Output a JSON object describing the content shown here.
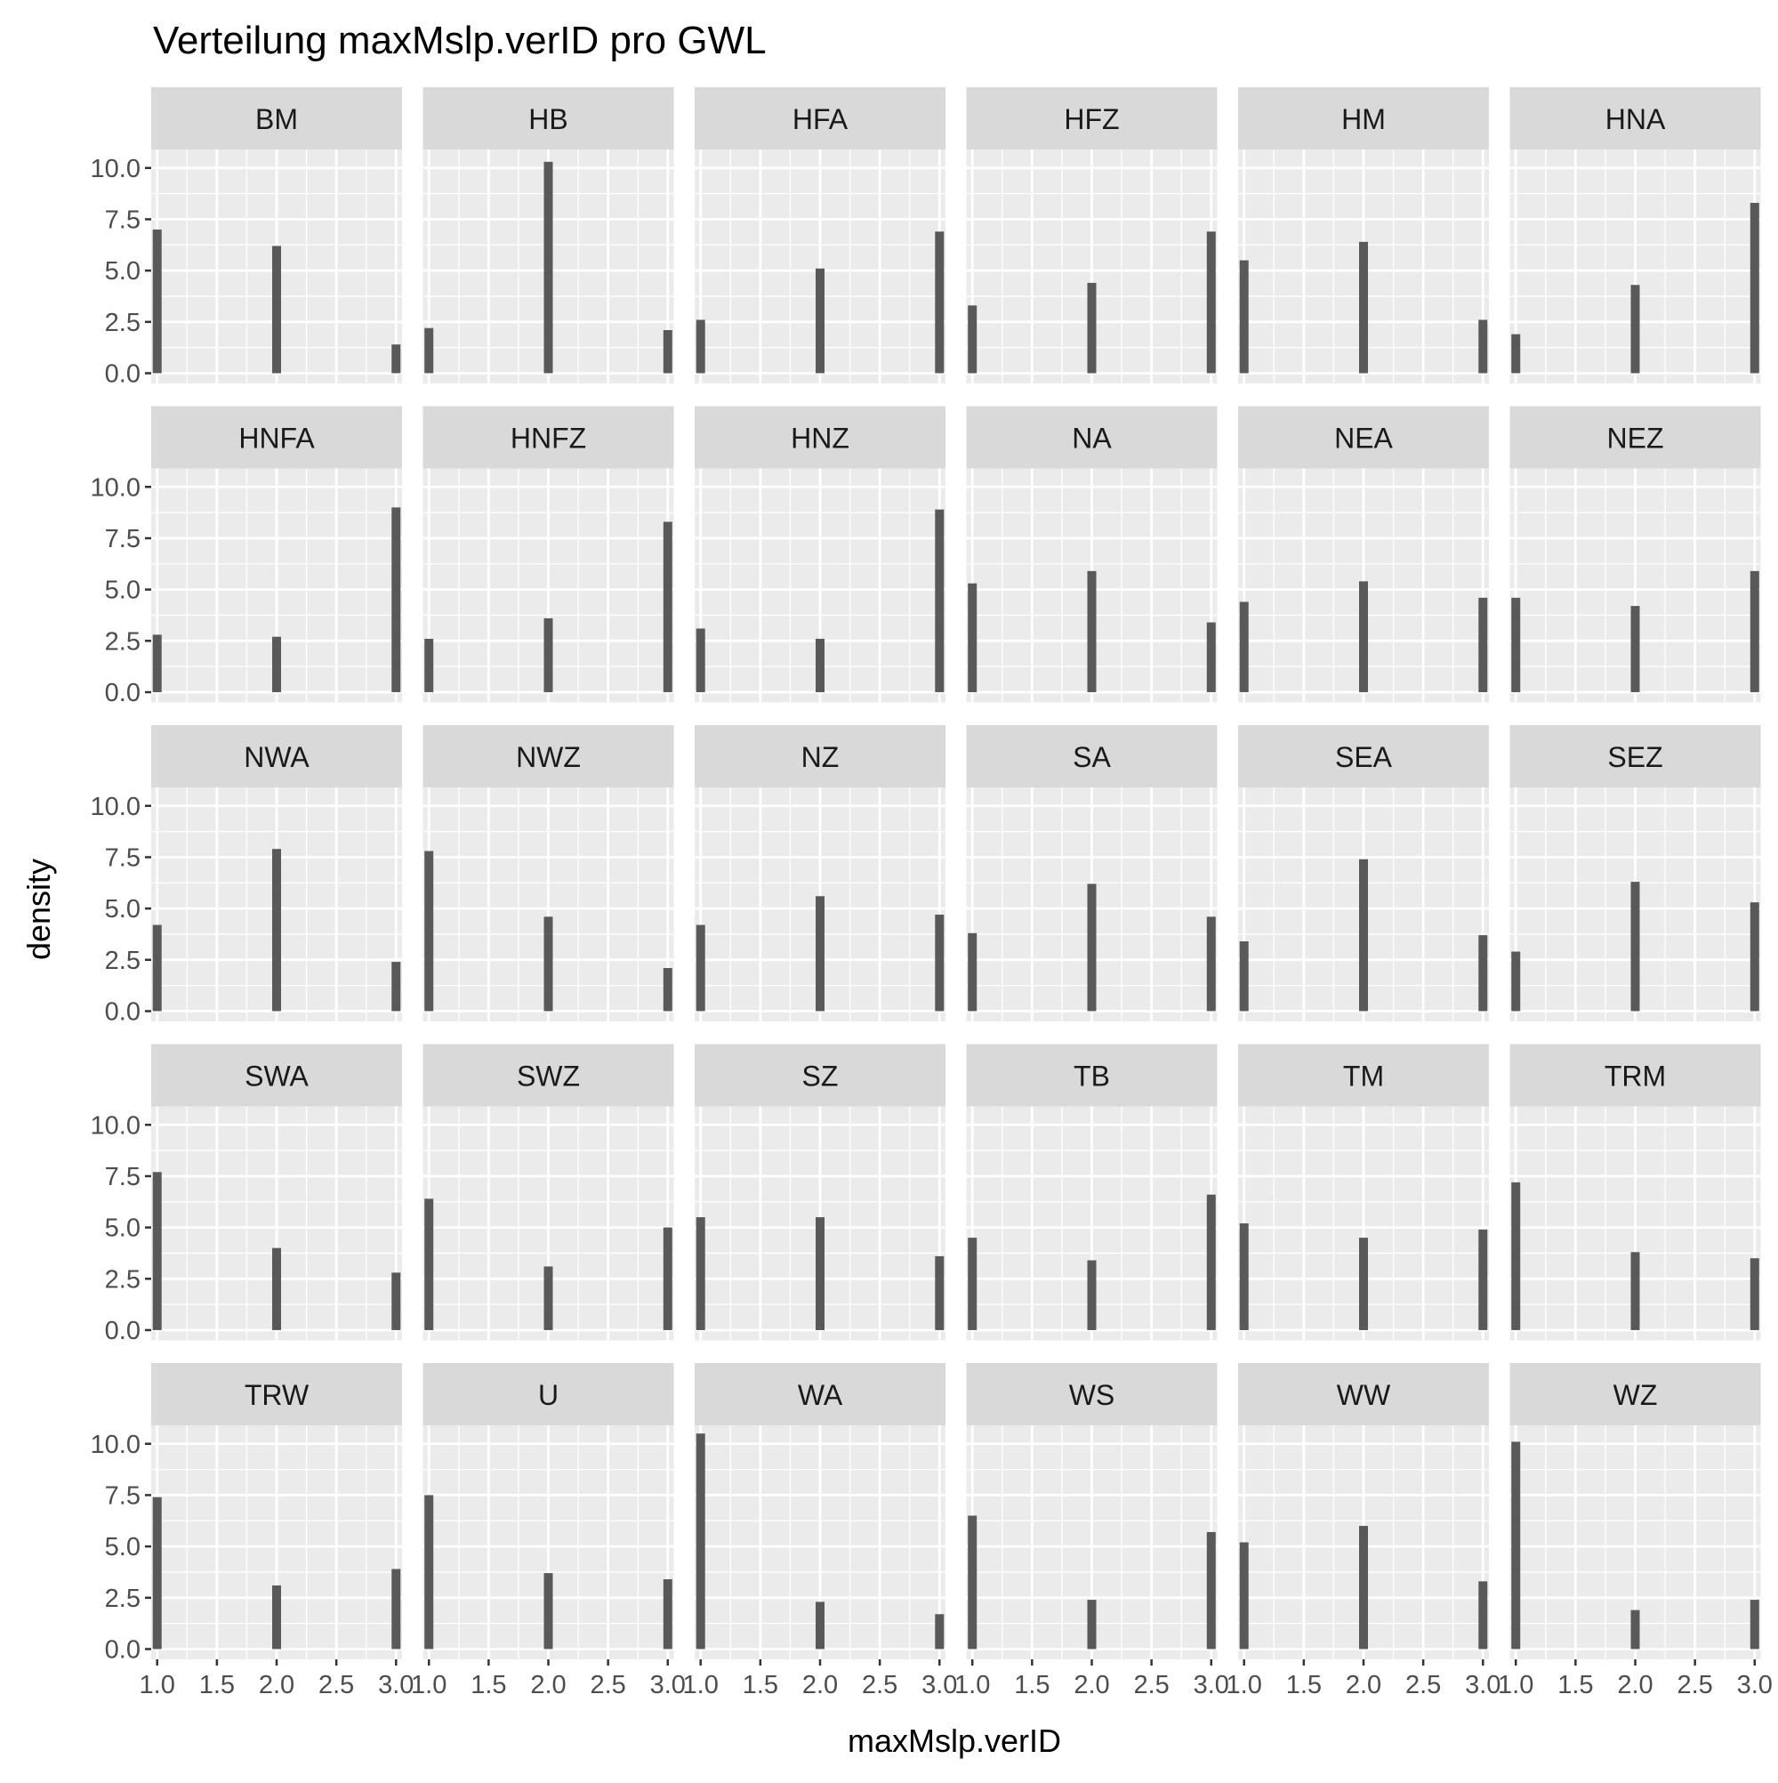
{
  "chart_data": {
    "type": "bar",
    "title": "Verteilung maxMslp.verID pro GWL",
    "xlabel": "maxMslp.verID",
    "ylabel": "density",
    "x_ticks": [
      "1.0",
      "1.5",
      "2.0",
      "2.5",
      "3.0"
    ],
    "y_ticks": [
      "0.0",
      "2.5",
      "5.0",
      "7.5",
      "10.0"
    ],
    "xlim": [
      0.95,
      3.05
    ],
    "ylim": [
      -0.5,
      10.9
    ],
    "grid": true,
    "facet_layout": {
      "columns": 6,
      "rows": 5
    },
    "categories": [
      1,
      2,
      3
    ],
    "panels": [
      {
        "name": "BM",
        "values": [
          7.0,
          6.2,
          1.4
        ]
      },
      {
        "name": "HB",
        "values": [
          2.2,
          10.3,
          2.1
        ]
      },
      {
        "name": "HFA",
        "values": [
          2.6,
          5.1,
          6.9
        ]
      },
      {
        "name": "HFZ",
        "values": [
          3.3,
          4.4,
          6.9
        ]
      },
      {
        "name": "HM",
        "values": [
          5.5,
          6.4,
          2.6
        ]
      },
      {
        "name": "HNA",
        "values": [
          1.9,
          4.3,
          8.3
        ]
      },
      {
        "name": "HNFA",
        "values": [
          2.8,
          2.7,
          9.0
        ]
      },
      {
        "name": "HNFZ",
        "values": [
          2.6,
          3.6,
          8.3
        ]
      },
      {
        "name": "HNZ",
        "values": [
          3.1,
          2.6,
          8.9
        ]
      },
      {
        "name": "NA",
        "values": [
          5.3,
          5.9,
          3.4
        ]
      },
      {
        "name": "NEA",
        "values": [
          4.4,
          5.4,
          4.6
        ]
      },
      {
        "name": "NEZ",
        "values": [
          4.6,
          4.2,
          5.9
        ]
      },
      {
        "name": "NWA",
        "values": [
          4.2,
          7.9,
          2.4
        ]
      },
      {
        "name": "NWZ",
        "values": [
          7.8,
          4.6,
          2.1
        ]
      },
      {
        "name": "NZ",
        "values": [
          4.2,
          5.6,
          4.7
        ]
      },
      {
        "name": "SA",
        "values": [
          3.8,
          6.2,
          4.6
        ]
      },
      {
        "name": "SEA",
        "values": [
          3.4,
          7.4,
          3.7
        ]
      },
      {
        "name": "SEZ",
        "values": [
          2.9,
          6.3,
          5.3
        ]
      },
      {
        "name": "SWA",
        "values": [
          7.7,
          4.0,
          2.8
        ]
      },
      {
        "name": "SWZ",
        "values": [
          6.4,
          3.1,
          5.0
        ]
      },
      {
        "name": "SZ",
        "values": [
          5.5,
          5.5,
          3.6
        ]
      },
      {
        "name": "TB",
        "values": [
          4.5,
          3.4,
          6.6
        ]
      },
      {
        "name": "TM",
        "values": [
          5.2,
          4.5,
          4.9
        ]
      },
      {
        "name": "TRM",
        "values": [
          7.2,
          3.8,
          3.5
        ]
      },
      {
        "name": "TRW",
        "values": [
          7.4,
          3.1,
          3.9
        ]
      },
      {
        "name": "U",
        "values": [
          7.5,
          3.7,
          3.4
        ]
      },
      {
        "name": "WA",
        "values": [
          10.5,
          2.3,
          1.7
        ]
      },
      {
        "name": "WS",
        "values": [
          6.5,
          2.4,
          5.7
        ]
      },
      {
        "name": "WW",
        "values": [
          5.2,
          6.0,
          3.3
        ]
      },
      {
        "name": "WZ",
        "values": [
          10.1,
          1.9,
          2.4
        ]
      }
    ],
    "colors": {
      "bar": "#595959",
      "panel_bg": "#ebebeb",
      "strip_bg": "#d9d9d9",
      "grid_major": "#ffffff",
      "text": "#000000",
      "tick_label": "#4d4d4d",
      "tick_mark": "#333333"
    }
  }
}
